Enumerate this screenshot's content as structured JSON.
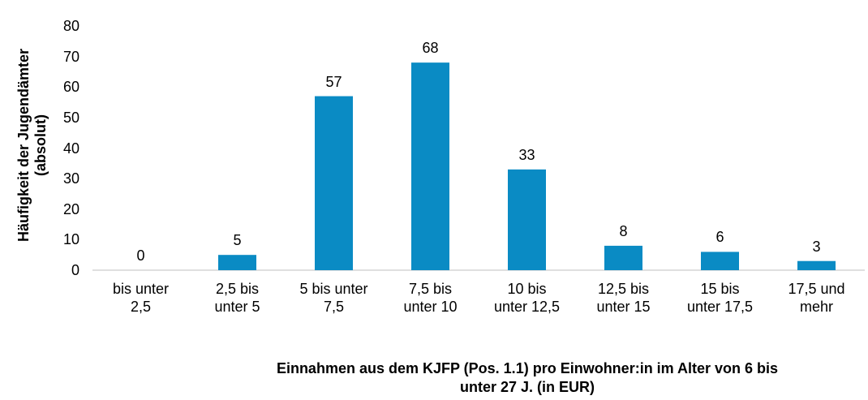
{
  "chart_data": {
    "type": "bar",
    "x_label": "Einnahmen aus dem KJFP (Pos. 1.1) pro Einwohner:in im Alter von 6 bis\nunter 27 J. (in EUR)",
    "y_label": "Häufigkeit der Jugendämter\n(absolut)",
    "categories": [
      "bis unter\n2,5",
      "2,5 bis\nunter 5",
      "5 bis unter\n7,5",
      "7,5 bis\nunter 10",
      "10 bis\nunter 12,5",
      "12,5 bis\nunter 15",
      "15 bis\nunter 17,5",
      "17,5 und\nmehr"
    ],
    "values": [
      0,
      5,
      57,
      68,
      33,
      8,
      6,
      3
    ],
    "color": "#0a8bc4",
    "ylim": [
      0,
      80
    ],
    "yticks": [
      0,
      10,
      20,
      30,
      40,
      50,
      60,
      70,
      80
    ],
    "grid": false
  }
}
